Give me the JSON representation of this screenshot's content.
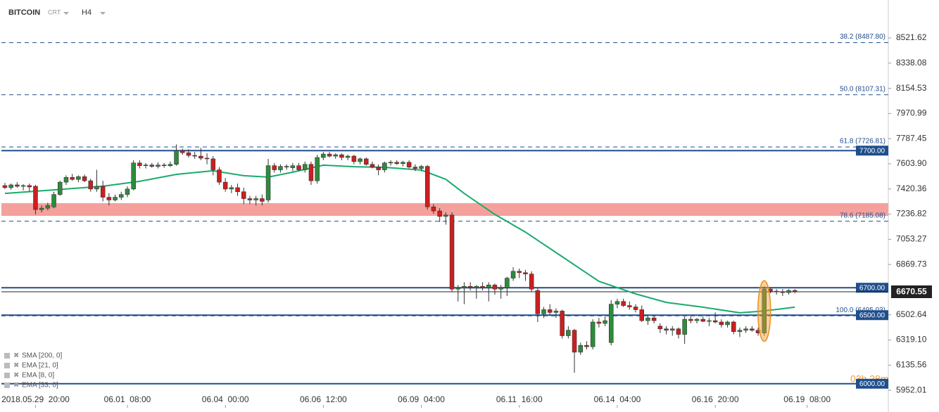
{
  "header": {
    "symbol": "BITCOIN",
    "type": "CRT",
    "timeframe": "H4"
  },
  "indicators": [
    "SMA [200, 0]",
    "EMA [21, 0]",
    "EMA [8, 0]",
    "EMA [33, 0]"
  ],
  "timer": "03h 28m",
  "chart_data": {
    "type": "candlestick",
    "ylim": [
      5845,
      8798.5
    ],
    "xlim": [
      -0.8,
      144.26
    ],
    "yticks": [
      8521.62,
      8338.08,
      8154.53,
      7970.99,
      7787.45,
      {
        "value": 7603.9,
        "label": "7603.90"
      },
      7420.36,
      7236.82,
      7053.27,
      6869.73,
      6502.64,
      {
        "value": 6319.1,
        "label": "6319.10"
      },
      6135.56,
      5952.01
    ],
    "xticks": [
      {
        "value": 5,
        "label": "2018.05.29  20:00"
      },
      {
        "value": 20,
        "label": "06.01  08:00"
      },
      {
        "value": 36,
        "label": "06.04  00:00"
      },
      {
        "value": 52,
        "label": "06.06  12:00"
      },
      {
        "value": 68,
        "label": "06.09  04:00"
      },
      {
        "value": 84,
        "label": "06.11  16:00"
      },
      {
        "value": 100,
        "label": "06.14  04:00"
      },
      {
        "value": 116,
        "label": "06.16  20:00"
      },
      {
        "value": 131,
        "label": "06.19  08:00"
      }
    ],
    "up_color": "#2e8b3c",
    "down_color": "#cc1f1f",
    "candles": [
      [
        7445,
        7465,
        7420,
        7430
      ],
      [
        7430,
        7460,
        7415,
        7450
      ],
      [
        7450,
        7470,
        7430,
        7440
      ],
      [
        7440,
        7455,
        7410,
        7445
      ],
      [
        7445,
        7460,
        7400,
        7435
      ],
      [
        7440,
        7450,
        7235,
        7270
      ],
      [
        7270,
        7300,
        7250,
        7280
      ],
      [
        7280,
        7320,
        7265,
        7300
      ],
      [
        7290,
        7400,
        7280,
        7380
      ],
      [
        7380,
        7480,
        7370,
        7470
      ],
      [
        7470,
        7520,
        7450,
        7505
      ],
      [
        7505,
        7530,
        7480,
        7490
      ],
      [
        7490,
        7520,
        7470,
        7510
      ],
      [
        7510,
        7525,
        7470,
        7480
      ],
      [
        7480,
        7495,
        7400,
        7420
      ],
      [
        7420,
        7560,
        7400,
        7440
      ],
      [
        7440,
        7480,
        7330,
        7360
      ],
      [
        7360,
        7390,
        7300,
        7340
      ],
      [
        7340,
        7380,
        7330,
        7360
      ],
      [
        7360,
        7400,
        7340,
        7380
      ],
      [
        7380,
        7440,
        7360,
        7420
      ],
      [
        7420,
        7630,
        7410,
        7610
      ],
      [
        7610,
        7630,
        7570,
        7590
      ],
      [
        7590,
        7610,
        7570,
        7595
      ],
      [
        7595,
        7610,
        7575,
        7585
      ],
      [
        7585,
        7615,
        7570,
        7595
      ],
      [
        7595,
        7610,
        7575,
        7590
      ],
      [
        7590,
        7620,
        7580,
        7600
      ],
      [
        7600,
        7745,
        7590,
        7700
      ],
      [
        7700,
        7715,
        7670,
        7685
      ],
      [
        7685,
        7710,
        7650,
        7665
      ],
      [
        7665,
        7690,
        7640,
        7660
      ],
      [
        7660,
        7720,
        7630,
        7645
      ],
      [
        7645,
        7680,
        7600,
        7640
      ],
      [
        7640,
        7660,
        7520,
        7560
      ],
      [
        7560,
        7580,
        7450,
        7470
      ],
      [
        7470,
        7500,
        7400,
        7420
      ],
      [
        7420,
        7450,
        7390,
        7430
      ],
      [
        7430,
        7460,
        7370,
        7400
      ],
      [
        7400,
        7430,
        7310,
        7350
      ],
      [
        7350,
        7370,
        7310,
        7340
      ],
      [
        7340,
        7370,
        7300,
        7350
      ],
      [
        7350,
        7380,
        7300,
        7330
      ],
      [
        7340,
        7640,
        7320,
        7590
      ],
      [
        7590,
        7610,
        7540,
        7560
      ],
      [
        7560,
        7600,
        7540,
        7585
      ],
      [
        7585,
        7600,
        7560,
        7580
      ],
      [
        7575,
        7610,
        7550,
        7590
      ],
      [
        7590,
        7610,
        7550,
        7560
      ],
      [
        7560,
        7620,
        7540,
        7600
      ],
      [
        7600,
        7620,
        7450,
        7480
      ],
      [
        7480,
        7670,
        7460,
        7650
      ],
      [
        7650,
        7690,
        7630,
        7675
      ],
      [
        7675,
        7690,
        7650,
        7660
      ],
      [
        7660,
        7680,
        7640,
        7670
      ],
      [
        7670,
        7680,
        7630,
        7650
      ],
      [
        7650,
        7670,
        7630,
        7660
      ],
      [
        7660,
        7670,
        7600,
        7620
      ],
      [
        7620,
        7650,
        7600,
        7640
      ],
      [
        7640,
        7650,
        7590,
        7600
      ],
      [
        7600,
        7620,
        7570,
        7580
      ],
      [
        7580,
        7600,
        7520,
        7560
      ],
      [
        7560,
        7620,
        7540,
        7610
      ],
      [
        7610,
        7630,
        7590,
        7615
      ],
      [
        7615,
        7630,
        7595,
        7605
      ],
      [
        7605,
        7625,
        7585,
        7615
      ],
      [
        7615,
        7630,
        7570,
        7580
      ],
      [
        7580,
        7600,
        7550,
        7570
      ],
      [
        7570,
        7595,
        7550,
        7585
      ],
      [
        7585,
        7595,
        7270,
        7290
      ],
      [
        7290,
        7310,
        7240,
        7260
      ],
      [
        7260,
        7280,
        7180,
        7220
      ],
      [
        7220,
        7250,
        7160,
        7230
      ],
      [
        7230,
        7250,
        6670,
        6690
      ],
      [
        6690,
        6720,
        6600,
        6700
      ],
      [
        6700,
        6740,
        6580,
        6710
      ],
      [
        6710,
        6740,
        6680,
        6700
      ],
      [
        6700,
        6720,
        6620,
        6710
      ],
      [
        6710,
        6740,
        6680,
        6700
      ],
      [
        6700,
        6740,
        6600,
        6720
      ],
      [
        6720,
        6730,
        6650,
        6690
      ],
      [
        6690,
        6720,
        6620,
        6700
      ],
      [
        6700,
        6780,
        6640,
        6770
      ],
      [
        6770,
        6850,
        6750,
        6820
      ],
      [
        6820,
        6840,
        6770,
        6810
      ],
      [
        6810,
        6830,
        6750,
        6800
      ],
      [
        6800,
        6820,
        6670,
        6690
      ],
      [
        6680,
        6700,
        6450,
        6510
      ],
      [
        6510,
        6560,
        6480,
        6540
      ],
      [
        6540,
        6580,
        6500,
        6520
      ],
      [
        6520,
        6550,
        6480,
        6530
      ],
      [
        6530,
        6540,
        6330,
        6350
      ],
      [
        6350,
        6420,
        6330,
        6390
      ],
      [
        6390,
        6400,
        6080,
        6230
      ],
      [
        6230,
        6300,
        6210,
        6280
      ],
      [
        6280,
        6310,
        6250,
        6270
      ],
      [
        6270,
        6470,
        6250,
        6450
      ],
      [
        6450,
        6480,
        6410,
        6440
      ],
      [
        6440,
        6490,
        6420,
        6460
      ],
      [
        6300,
        6610,
        6280,
        6580
      ],
      [
        6580,
        6620,
        6550,
        6600
      ],
      [
        6600,
        6620,
        6560,
        6570
      ],
      [
        6570,
        6600,
        6540,
        6560
      ],
      [
        6560,
        6580,
        6520,
        6540
      ],
      [
        6540,
        6570,
        6450,
        6460
      ],
      [
        6460,
        6500,
        6430,
        6480
      ],
      [
        6480,
        6500,
        6440,
        6460
      ],
      [
        6420,
        6440,
        6370,
        6400
      ],
      [
        6400,
        6420,
        6360,
        6390
      ],
      [
        6390,
        6420,
        6350,
        6400
      ],
      [
        6400,
        6410,
        6330,
        6360
      ],
      [
        6360,
        6490,
        6290,
        6470
      ],
      [
        6470,
        6490,
        6440,
        6460
      ],
      [
        6460,
        6480,
        6440,
        6470
      ],
      [
        6470,
        6490,
        6450,
        6455
      ],
      [
        6455,
        6480,
        6420,
        6460
      ],
      [
        6460,
        6520,
        6440,
        6450
      ],
      [
        6450,
        6470,
        6410,
        6430
      ],
      [
        6430,
        6460,
        6410,
        6450
      ],
      [
        6450,
        6460,
        6360,
        6380
      ],
      [
        6380,
        6410,
        6340,
        6390
      ],
      [
        6390,
        6420,
        6370,
        6400
      ],
      [
        6400,
        6420,
        6380,
        6390
      ],
      [
        6390,
        6410,
        6350,
        6370
      ],
      [
        6370,
        6710,
        6350,
        6690
      ],
      [
        6690,
        6700,
        6660,
        6675
      ],
      [
        6675,
        6690,
        6650,
        6670
      ],
      [
        6670,
        6690,
        6640,
        6665
      ],
      [
        6665,
        6690,
        6650,
        6680
      ],
      [
        6680,
        6690,
        6660,
        6670.55
      ]
    ],
    "ma_line": {
      "color": "#1aab6d",
      "x": [
        0,
        5,
        11,
        16,
        22,
        28,
        34,
        39,
        43,
        47,
        52,
        57,
        62,
        68,
        72,
        75,
        80,
        85,
        91,
        97,
        103,
        108,
        114,
        120,
        123,
        126,
        129
      ],
      "values": [
        7388,
        7404,
        7424,
        7440,
        7476,
        7527,
        7553,
        7517,
        7507,
        7543,
        7594,
        7583,
        7578,
        7558,
        7491,
        7388,
        7235,
        7106,
        6927,
        6747,
        6655,
        6593,
        6558,
        6517,
        6527,
        6542,
        6558
      ]
    },
    "zone": [
      7224,
      7317
    ],
    "zone_color": "#f4a09c",
    "fib_levels": [
      {
        "value": 8487.8,
        "label": "38.2 (8487.80)"
      },
      {
        "value": 8107.31,
        "label": "50.0 (8107.31)"
      },
      {
        "value": 7726.81,
        "label": "61.8 (7726.81)"
      },
      {
        "value": 7185.08,
        "label": "78.6 (7185.08)"
      },
      {
        "value": 6495.03,
        "label": "100.0 (6495.03)"
      }
    ],
    "levels": [
      {
        "value": 7700,
        "label": "7700.00"
      },
      {
        "value": 6700,
        "label": "6700.00"
      },
      {
        "value": 6500,
        "label": "6500.00"
      },
      {
        "value": 6000,
        "label": "6000.00"
      }
    ],
    "level_color": "#1f4e8c",
    "last_price": {
      "value": 6670.55,
      "label": "6670.55"
    }
  }
}
